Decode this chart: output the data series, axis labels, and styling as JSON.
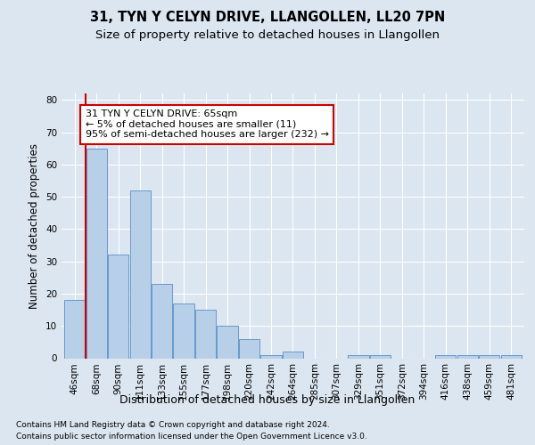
{
  "title": "31, TYN Y CELYN DRIVE, LLANGOLLEN, LL20 7PN",
  "subtitle": "Size of property relative to detached houses in Llangollen",
  "xlabel": "Distribution of detached houses by size in Llangollen",
  "ylabel": "Number of detached properties",
  "categories": [
    "46sqm",
    "68sqm",
    "90sqm",
    "111sqm",
    "133sqm",
    "155sqm",
    "177sqm",
    "198sqm",
    "220sqm",
    "242sqm",
    "264sqm",
    "285sqm",
    "307sqm",
    "329sqm",
    "351sqm",
    "372sqm",
    "394sqm",
    "416sqm",
    "438sqm",
    "459sqm",
    "481sqm"
  ],
  "bar_heights": [
    18,
    65,
    32,
    52,
    23,
    17,
    15,
    10,
    6,
    1,
    2,
    0,
    0,
    1,
    1,
    0,
    0,
    1,
    1,
    1,
    1
  ],
  "bar_color": "#b8cfe8",
  "bar_edge_color": "#6699cc",
  "highlight_bar_index": 1,
  "highlight_color": "#cc0000",
  "annotation_text": "31 TYN Y CELYN DRIVE: 65sqm\n← 5% of detached houses are smaller (11)\n95% of semi-detached houses are larger (232) →",
  "annotation_box_facecolor": "#ffffff",
  "annotation_box_edgecolor": "#cc0000",
  "ylim": [
    0,
    82
  ],
  "yticks": [
    0,
    10,
    20,
    30,
    40,
    50,
    60,
    70,
    80
  ],
  "background_color": "#dce6f0",
  "plot_bg_color": "#dce6f0",
  "grid_color": "#ffffff",
  "footer_line1": "Contains HM Land Registry data © Crown copyright and database right 2024.",
  "footer_line2": "Contains public sector information licensed under the Open Government Licence v3.0.",
  "title_fontsize": 10.5,
  "subtitle_fontsize": 9.5,
  "xlabel_fontsize": 9,
  "ylabel_fontsize": 8.5,
  "tick_fontsize": 7.5,
  "annotation_fontsize": 8,
  "footer_fontsize": 6.5
}
